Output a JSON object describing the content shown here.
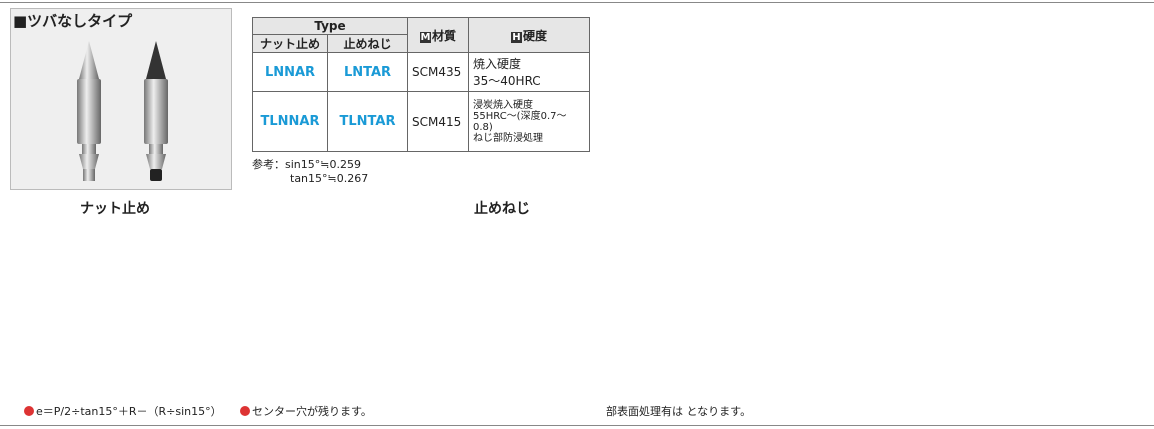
{
  "section": {
    "title": "■ツバなしタイプ",
    "captions": [
      "ナット止め",
      "止めねじ"
    ]
  },
  "table": {
    "header": {
      "type": "Type",
      "sub": [
        "ナット止め",
        "止めねじ"
      ],
      "material_icon": "M",
      "material": "材質",
      "hardness_icon": "H",
      "hardness": "硬度"
    },
    "rows": [
      [
        "LNNAR",
        "LNTAR",
        "SCM435",
        [
          "焼入硬度",
          "35～40HRC"
        ]
      ],
      [
        "TLNNAR",
        "TLNTAR",
        "SCM415",
        [
          "浸炭焼入硬度",
          "55HRC～(深度0.7～0.8)",
          "ねじ部防浸処理"
        ]
      ]
    ]
  },
  "note": {
    "label": "参考：",
    "lines": [
      "sin15°≒0.259",
      "tan15°≒0.267"
    ]
  },
  "footer": [
    "e＝P/2÷tan15°＋R－（R÷sin15°）",
    "センター穴が残ります。",
    "部表面処理有は となります。"
  ]
}
